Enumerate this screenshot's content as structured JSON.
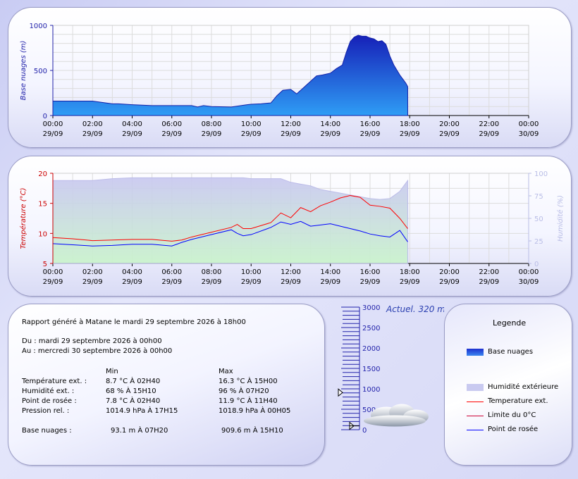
{
  "chart_data": [
    {
      "type": "area",
      "ylabel": "Base nuages (m)",
      "ylim": [
        0,
        1000
      ],
      "yticks": [
        0,
        500,
        1000
      ],
      "x_ticks": [
        {
          "time": "00:00",
          "date": "29/09"
        },
        {
          "time": "02:00",
          "date": "29/09"
        },
        {
          "time": "04:00",
          "date": "29/09"
        },
        {
          "time": "06:00",
          "date": "29/09"
        },
        {
          "time": "08:00",
          "date": "29/09"
        },
        {
          "time": "10:00",
          "date": "29/09"
        },
        {
          "time": "12:00",
          "date": "29/09"
        },
        {
          "time": "14:00",
          "date": "29/09"
        },
        {
          "time": "16:00",
          "date": "29/09"
        },
        {
          "time": "18:00",
          "date": "29/09"
        },
        {
          "time": "20:00",
          "date": "29/09"
        },
        {
          "time": "22:00",
          "date": "29/09"
        },
        {
          "time": "00:00",
          "date": "30/09"
        }
      ],
      "x_hours": [
        0,
        1,
        2,
        3,
        3.3,
        4,
        5,
        6,
        7,
        7.3,
        7.6,
        8,
        9,
        9.8,
        10,
        10.5,
        11,
        11.3,
        11.6,
        12,
        12.3,
        12.6,
        13,
        13.3,
        13.6,
        14,
        14.3,
        14.6,
        14.8,
        15,
        15.2,
        15.4,
        15.6,
        15.8,
        16,
        16.2,
        16.4,
        16.6,
        16.8,
        17,
        17.2,
        17.5,
        17.8,
        17.9
      ],
      "series": [
        {
          "values": [
            160,
            160,
            160,
            130,
            130,
            120,
            110,
            110,
            110,
            95,
            110,
            100,
            95,
            120,
            125,
            130,
            140,
            220,
            280,
            290,
            240,
            300,
            380,
            440,
            450,
            470,
            520,
            560,
            700,
            820,
            870,
            890,
            880,
            880,
            860,
            850,
            820,
            830,
            790,
            660,
            560,
            450,
            360,
            320
          ]
        }
      ],
      "grid": true
    },
    {
      "type": "line",
      "ylabel": "Température (°C)",
      "y2label": "Humidité (%)",
      "ylim": [
        5,
        20
      ],
      "yticks": [
        5,
        10,
        15,
        20
      ],
      "y2lim": [
        0,
        100
      ],
      "y2ticks": [
        0,
        25,
        50,
        75,
        100
      ],
      "x_ticks": [
        {
          "time": "00:00",
          "date": "29/09"
        },
        {
          "time": "02:00",
          "date": "29/09"
        },
        {
          "time": "04:00",
          "date": "29/09"
        },
        {
          "time": "06:00",
          "date": "29/09"
        },
        {
          "time": "08:00",
          "date": "29/09"
        },
        {
          "time": "10:00",
          "date": "29/09"
        },
        {
          "time": "12:00",
          "date": "29/09"
        },
        {
          "time": "14:00",
          "date": "29/09"
        },
        {
          "time": "16:00",
          "date": "29/09"
        },
        {
          "time": "18:00",
          "date": "29/09"
        },
        {
          "time": "20:00",
          "date": "29/09"
        },
        {
          "time": "22:00",
          "date": "29/09"
        },
        {
          "time": "00:00",
          "date": "30/09"
        }
      ],
      "x_hours": [
        0,
        1,
        2,
        3,
        4,
        5,
        6,
        6.5,
        7,
        8,
        9,
        9.3,
        9.6,
        10,
        11,
        11.5,
        12,
        12.5,
        13,
        13.5,
        14,
        14.5,
        15,
        15.5,
        16,
        16.5,
        17,
        17.5,
        17.9
      ],
      "series": [
        {
          "name": "Humidité extérieure",
          "axis": "y2",
          "values": [
            92,
            92,
            92,
            94,
            95,
            95,
            95,
            95,
            95,
            95,
            95,
            95,
            95,
            94,
            94,
            94,
            90,
            88,
            86,
            82,
            80,
            78,
            76,
            74,
            72,
            71,
            72,
            80,
            92
          ]
        },
        {
          "name": "Temperature ext.",
          "axis": "y",
          "values": [
            9.3,
            9.1,
            8.8,
            8.9,
            9,
            9,
            8.7,
            8.9,
            9.4,
            10.2,
            11.0,
            11.5,
            10.8,
            10.8,
            11.8,
            13.4,
            12.6,
            14.3,
            13.6,
            14.6,
            15.2,
            15.9,
            16.3,
            16.0,
            14.7,
            14.5,
            14.2,
            12.5,
            10.8
          ]
        },
        {
          "name": "Point de rosée",
          "axis": "y",
          "values": [
            8.3,
            8.1,
            7.9,
            8.0,
            8.2,
            8.2,
            7.9,
            8.5,
            9.0,
            9.8,
            10.6,
            10.0,
            9.6,
            9.8,
            11.0,
            11.9,
            11.5,
            12.0,
            11.2,
            11.4,
            11.6,
            11.2,
            10.8,
            10.4,
            9.9,
            9.6,
            9.4,
            10.5,
            8.6
          ]
        }
      ],
      "grid": true
    }
  ],
  "report": {
    "title": "Rapport généré à Matane le mardi 29 septembre 2026 à 18h00",
    "du": "Du : mardi 29 septembre 2026 à 00h00",
    "au": "Au : mercredi 30 septembre 2026 à 00h00",
    "col_min": "Min",
    "col_max": "Max",
    "rows": [
      {
        "label": "Température ext. :",
        "min": "8.7 °C À 02H40",
        "max": "16.3 °C À 15H00"
      },
      {
        "label": "Humidité ext. :",
        "min": "68 % À 15H10",
        "max": "96 % À 07H20"
      },
      {
        "label": "Point de rosée :",
        "min": "7.8 °C À 02H40",
        "max": "11.9 °C À 11H40"
      },
      {
        "label": "Pression rel. :",
        "min": "1014.9 hPa À 17H15",
        "max": "1018.9 hPa À 00H05"
      }
    ],
    "cloud_row": {
      "label": "Base nuages :",
      "min": "93.1 m À 07H20",
      "max": "909.6 m À 15H10"
    }
  },
  "gauge": {
    "title": "Actuel. 320 m",
    "value": 320,
    "ticks": [
      0,
      500,
      1000,
      1500,
      2000,
      2500,
      3000
    ],
    "min_marker": 93.1,
    "max_marker": 909.6
  },
  "legend": {
    "title": "Legende",
    "items": [
      {
        "label": "Base nuages",
        "kind": "area-blue"
      },
      {
        "label": "Humidité extérieure",
        "kind": "area-lav"
      },
      {
        "label": "Temperature ext.",
        "kind": "line",
        "color": "#ff0000"
      },
      {
        "label": "Limite du 0°C",
        "kind": "line",
        "color": "#cc0033"
      },
      {
        "label": "Point de rosée",
        "kind": "line",
        "color": "#0000ff"
      }
    ]
  },
  "colors": {
    "cloud": "#1a2fd6",
    "temp": "#ff0000",
    "dew": "#0000ff",
    "humidity": "#c9caf0",
    "axis_blue": "#2222aa",
    "axis_red": "#cc0000",
    "axis_lav": "#b9bde6"
  }
}
